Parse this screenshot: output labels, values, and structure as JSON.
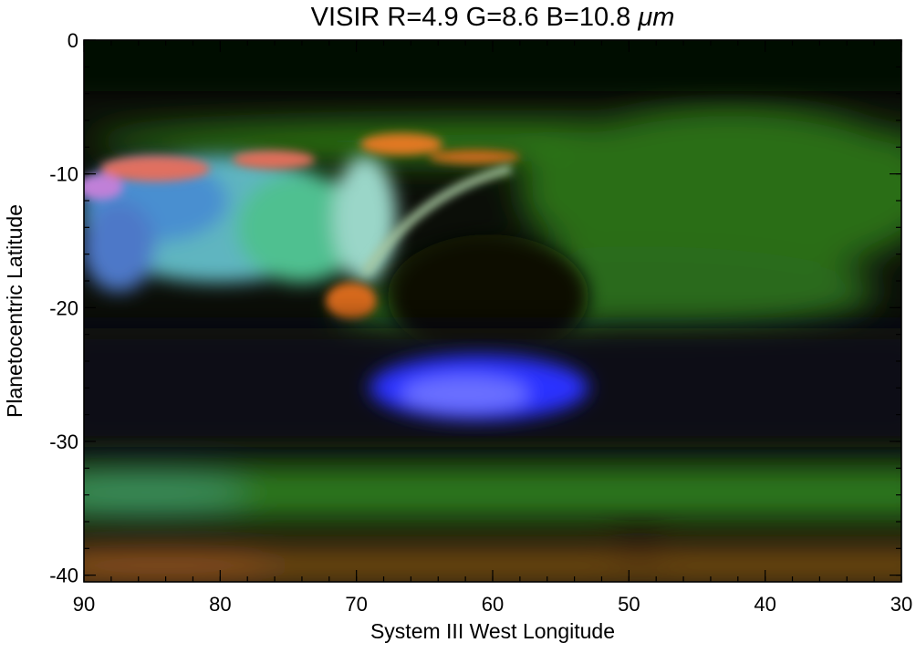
{
  "chart_data": {
    "type": "heatmap",
    "title_prefix": "VISIR R=4.9 G=8.6 B=10.8 ",
    "title_unit": "μm",
    "xlabel": "System III West Longitude",
    "ylabel": "Planetocentric Latitude",
    "xlim": [
      90,
      30
    ],
    "ylim": [
      -40.5,
      0
    ],
    "x_ticks": [
      90,
      80,
      70,
      60,
      50,
      40,
      30
    ],
    "y_ticks": [
      0,
      -10,
      -20,
      -30,
      -40
    ],
    "x_minor_step": 2,
    "y_minor_step": 2,
    "grid": false,
    "colors": {
      "background": "#0b0e08",
      "green_band": "#3c8a22",
      "blue_oval": "#2a30ff",
      "orange_edge": "#d86a1c",
      "cyan_wake": "#6ac2c8"
    }
  }
}
